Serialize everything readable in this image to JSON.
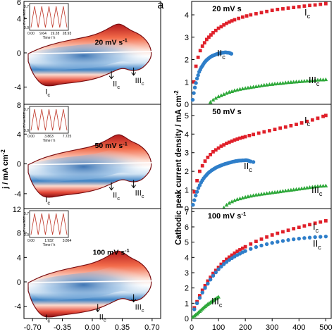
{
  "figure": {
    "left_ylabel": "j / mA cm",
    "left_ylabel_exp": "-2",
    "right_ylabel": "Cathodic peak current density / mA cm",
    "right_ylabel_exp": "-2",
    "panel_letter": "a",
    "x_ticks_left": [
      "-0.70",
      "-0.35",
      "0.00",
      "0.35",
      "0.70"
    ],
    "x_ticks_right": [
      "0",
      "100",
      "200",
      "300",
      "400",
      "500"
    ]
  },
  "chart_data": [
    {
      "type": "line",
      "title": "20 mV s-1",
      "xlim": [
        -0.8,
        0.8
      ],
      "ylim": [
        -6,
        6
      ],
      "yticks": [
        "-4",
        "0",
        "4"
      ],
      "top_edge_label": "6",
      "peak_labels": [
        {
          "base": "I",
          "sub": "c",
          "x": -0.55,
          "y": -4.0
        },
        {
          "base": "II",
          "sub": "c",
          "x": 0.24,
          "y": -3.1
        },
        {
          "base": "III",
          "sub": "c",
          "x": 0.5,
          "y": -2.7
        }
      ],
      "inset": {
        "ylabel": "E / vs.SCE",
        "xlabel": "Time / h",
        "xticks": [
          "0.00",
          "9.64",
          "19.28",
          "28.93"
        ],
        "ytick_labels": [
          "0.0",
          "0.7"
        ],
        "cycles": 5
      }
    },
    {
      "type": "line",
      "title": "50 mV s-1",
      "xlim": [
        -0.8,
        0.8
      ],
      "ylim": [
        -6,
        8
      ],
      "yticks": [
        "-4",
        "0",
        "4"
      ],
      "top_edge_label": "8",
      "peak_labels": [
        {
          "base": "I",
          "sub": "c",
          "x": -0.55,
          "y": -4.2
        },
        {
          "base": "II",
          "sub": "c",
          "x": 0.24,
          "y": -3.6
        },
        {
          "base": "III",
          "sub": "c",
          "x": 0.5,
          "y": -3.3
        }
      ],
      "inset": {
        "ylabel": "E / vs.SCE",
        "xlabel": "Time / h",
        "xticks": [
          "0.00",
          "3.863",
          "7.725"
        ],
        "ytick_labels": [
          "0.0",
          "0.7"
        ],
        "cycles": 5
      }
    },
    {
      "type": "line",
      "title": "100 mV s-1",
      "xlim": [
        -0.8,
        0.8
      ],
      "ylim": [
        -6,
        12
      ],
      "yticks": [
        "-4",
        "0",
        "4",
        "8"
      ],
      "top_edge_label": "12",
      "peak_labels": [
        {
          "base": "I",
          "sub": "c",
          "x": -0.55,
          "y": -5.1
        },
        {
          "base": "II",
          "sub": "c",
          "x": 0.08,
          "y": -5.0
        },
        {
          "base": "III",
          "sub": "c",
          "x": 0.5,
          "y": -3.4
        }
      ],
      "inset": {
        "ylabel": "E / vs.SCE",
        "xlabel": "Time / h",
        "xticks": [
          "0.00",
          "1.932",
          "3.864"
        ],
        "ytick_labels": [
          "0.0",
          "0.7"
        ],
        "cycles": 5
      }
    },
    {
      "type": "scatter",
      "title": "20 mV s",
      "xlim": [
        0,
        520
      ],
      "ylim": [
        0,
        4.6
      ],
      "yticks": [
        "0",
        "1",
        "2",
        "3",
        "4"
      ],
      "series": [
        {
          "name": "I",
          "sub": "c",
          "color": "#e0202a",
          "marker": "square",
          "x": [
            8,
            16,
            24,
            32,
            40,
            48,
            56,
            64,
            72,
            80,
            90,
            100,
            110,
            120,
            130,
            140,
            150,
            160,
            175,
            190,
            205,
            220,
            240,
            260,
            280,
            300,
            320,
            340,
            360,
            380,
            400,
            420,
            440,
            460,
            480,
            500
          ],
          "y": [
            1.0,
            1.7,
            2.1,
            2.4,
            2.6,
            2.75,
            2.9,
            3.0,
            3.1,
            3.2,
            3.3,
            3.4,
            3.47,
            3.55,
            3.62,
            3.68,
            3.73,
            3.78,
            3.84,
            3.9,
            3.95,
            4.0,
            4.05,
            4.1,
            4.15,
            4.2,
            4.24,
            4.27,
            4.3,
            4.33,
            4.36,
            4.39,
            4.42,
            4.44,
            4.47,
            4.5
          ]
        },
        {
          "name": "II",
          "sub": "c",
          "color": "#2e7ec9",
          "marker": "circle",
          "x": [
            4,
            8,
            12,
            16,
            20,
            24,
            28,
            32,
            36,
            40,
            44,
            48,
            52,
            56,
            60,
            64,
            68,
            72,
            76,
            80,
            84,
            88,
            92,
            96,
            100,
            104,
            108,
            112,
            116,
            120,
            124,
            128,
            132,
            136,
            140,
            144,
            148
          ],
          "y": [
            0.2,
            0.5,
            0.75,
            0.95,
            1.15,
            1.3,
            1.45,
            1.55,
            1.65,
            1.72,
            1.8,
            1.87,
            1.93,
            1.98,
            2.02,
            2.06,
            2.1,
            2.13,
            2.16,
            2.18,
            2.2,
            2.22,
            2.24,
            2.25,
            2.27,
            2.28,
            2.29,
            2.3,
            2.31,
            2.31,
            2.32,
            2.32,
            2.31,
            2.31,
            2.3,
            2.28,
            2.26
          ]
        },
        {
          "name": "III",
          "sub": "c",
          "color": "#2ea83a",
          "marker": "triangle",
          "x": [
            70,
            80,
            90,
            100,
            110,
            120,
            130,
            140,
            150,
            160,
            170,
            180,
            190,
            200,
            210,
            220,
            230,
            240,
            250,
            260,
            270,
            280,
            290,
            300,
            310,
            320,
            330,
            340,
            350,
            360,
            370,
            380,
            390,
            400,
            410,
            420,
            430,
            440,
            450,
            460,
            470,
            480,
            490,
            500
          ],
          "y": [
            0.1,
            0.2,
            0.28,
            0.35,
            0.4,
            0.45,
            0.5,
            0.55,
            0.58,
            0.62,
            0.65,
            0.68,
            0.7,
            0.72,
            0.74,
            0.76,
            0.78,
            0.8,
            0.82,
            0.84,
            0.86,
            0.87,
            0.89,
            0.9,
            0.92,
            0.93,
            0.94,
            0.95,
            0.97,
            0.98,
            0.99,
            1.0,
            1.01,
            1.02,
            1.03,
            1.04,
            1.05,
            1.06,
            1.07,
            1.08,
            1.09,
            1.1,
            1.1,
            1.11
          ]
        }
      ]
    },
    {
      "type": "scatter",
      "title": "50 mV s",
      "xlim": [
        0,
        520
      ],
      "ylim": [
        0,
        5.6
      ],
      "yticks": [
        "0",
        "1",
        "2",
        "3",
        "4",
        "5"
      ],
      "series": [
        {
          "name": "I",
          "sub": "c",
          "color": "#e0202a",
          "marker": "square",
          "x": [
            10,
            20,
            30,
            40,
            50,
            60,
            70,
            80,
            90,
            100,
            110,
            120,
            130,
            140,
            150,
            160,
            170,
            180,
            190,
            200,
            215,
            230,
            250,
            270,
            290,
            310,
            330,
            350,
            370,
            390,
            410,
            430,
            450,
            470,
            490,
            500
          ],
          "y": [
            0.9,
            1.5,
            2.0,
            2.3,
            2.55,
            2.75,
            2.9,
            3.05,
            3.15,
            3.25,
            3.35,
            3.42,
            3.5,
            3.56,
            3.62,
            3.68,
            3.73,
            3.78,
            3.82,
            3.86,
            3.92,
            3.98,
            4.05,
            4.12,
            4.18,
            4.25,
            4.32,
            4.38,
            4.45,
            4.52,
            4.6,
            4.68,
            4.76,
            4.85,
            4.95,
            5.0
          ]
        },
        {
          "name": "II",
          "sub": "c",
          "color": "#2e7ec9",
          "marker": "circle",
          "x": [
            5,
            10,
            15,
            20,
            25,
            30,
            35,
            40,
            45,
            50,
            55,
            60,
            65,
            70,
            75,
            80,
            85,
            90,
            95,
            100,
            105,
            110,
            115,
            120,
            125,
            130,
            135,
            140,
            145,
            150,
            155,
            160,
            165,
            170,
            175,
            180,
            185,
            190,
            195,
            200,
            205,
            210,
            215,
            220,
            230
          ],
          "y": [
            0.2,
            0.45,
            0.7,
            0.9,
            1.1,
            1.25,
            1.4,
            1.52,
            1.63,
            1.72,
            1.8,
            1.88,
            1.95,
            2.0,
            2.06,
            2.1,
            2.15,
            2.19,
            2.23,
            2.26,
            2.29,
            2.32,
            2.35,
            2.37,
            2.4,
            2.42,
            2.44,
            2.46,
            2.48,
            2.5,
            2.52,
            2.53,
            2.55,
            2.56,
            2.57,
            2.58,
            2.58,
            2.59,
            2.59,
            2.6,
            2.6,
            2.58,
            2.55,
            2.53,
            2.5
          ]
        },
        {
          "name": "III",
          "sub": "c",
          "color": "#2ea83a",
          "marker": "triangle",
          "x": [
            120,
            130,
            140,
            150,
            160,
            170,
            180,
            190,
            200,
            210,
            220,
            230,
            240,
            250,
            260,
            270,
            280,
            290,
            300,
            310,
            320,
            330,
            340,
            350,
            360,
            370,
            380,
            390,
            400,
            410,
            420,
            430,
            440,
            450,
            460,
            470,
            480,
            490,
            500
          ],
          "y": [
            0.05,
            0.2,
            0.3,
            0.38,
            0.44,
            0.5,
            0.54,
            0.58,
            0.62,
            0.65,
            0.68,
            0.71,
            0.74,
            0.76,
            0.78,
            0.8,
            0.82,
            0.84,
            0.86,
            0.88,
            0.9,
            0.92,
            0.94,
            0.96,
            0.98,
            1.0,
            1.02,
            1.04,
            1.06,
            1.08,
            1.1,
            1.12,
            1.14,
            1.16,
            1.18,
            1.2,
            1.21,
            1.22,
            1.23
          ]
        }
      ]
    },
    {
      "type": "scatter",
      "title": "100 mV s-1",
      "xlim": [
        0,
        520
      ],
      "ylim": [
        0,
        7.2
      ],
      "yticks": [
        "0",
        "1",
        "2",
        "3",
        "4",
        "5",
        "6",
        "7"
      ],
      "series": [
        {
          "name": "I",
          "sub": "c",
          "color": "#e0202a",
          "marker": "square",
          "x": [
            10,
            20,
            30,
            40,
            50,
            60,
            70,
            80,
            90,
            100,
            110,
            120,
            130,
            140,
            150,
            160,
            170,
            180,
            190,
            200,
            220,
            240,
            260,
            280,
            300,
            320,
            340,
            360,
            380,
            400,
            420,
            440,
            460,
            480,
            500
          ],
          "y": [
            0.7,
            1.1,
            1.5,
            1.85,
            2.15,
            2.45,
            2.7,
            2.95,
            3.15,
            3.35,
            3.55,
            3.72,
            3.88,
            4.02,
            4.15,
            4.28,
            4.4,
            4.5,
            4.6,
            4.7,
            4.88,
            5.05,
            5.2,
            5.34,
            5.47,
            5.58,
            5.68,
            5.78,
            5.88,
            5.97,
            6.06,
            6.15,
            6.24,
            6.32,
            6.4
          ]
        },
        {
          "name": "II",
          "sub": "c",
          "color": "#2e7ec9",
          "marker": "circle",
          "x": [
            10,
            20,
            30,
            40,
            50,
            60,
            70,
            80,
            90,
            100,
            110,
            120,
            130,
            140,
            150,
            160,
            170,
            180,
            190,
            200,
            220,
            240,
            260,
            280,
            300,
            320,
            340,
            360,
            380,
            400,
            420,
            440,
            460,
            480,
            500
          ],
          "y": [
            0.6,
            1.0,
            1.35,
            1.7,
            2.0,
            2.28,
            2.55,
            2.8,
            3.02,
            3.22,
            3.4,
            3.56,
            3.7,
            3.83,
            3.95,
            4.06,
            4.16,
            4.25,
            4.34,
            4.42,
            4.56,
            4.68,
            4.78,
            4.87,
            4.95,
            5.02,
            5.08,
            5.14,
            5.19,
            5.23,
            5.27,
            5.3,
            5.33,
            5.35,
            5.37
          ]
        },
        {
          "name": "III",
          "sub": "c",
          "color": "#2ea83a",
          "marker": "triangle",
          "x": [
            5,
            10,
            15,
            20,
            25,
            30,
            35,
            40,
            45,
            50,
            55,
            60,
            65,
            70,
            75,
            80,
            85,
            90,
            95,
            100
          ],
          "y": [
            0.1,
            0.18,
            0.25,
            0.32,
            0.4,
            0.48,
            0.56,
            0.64,
            0.72,
            0.8,
            0.87,
            0.94,
            1.0,
            1.06,
            1.12,
            1.18,
            1.24,
            1.3,
            1.36,
            1.42
          ]
        }
      ]
    }
  ]
}
